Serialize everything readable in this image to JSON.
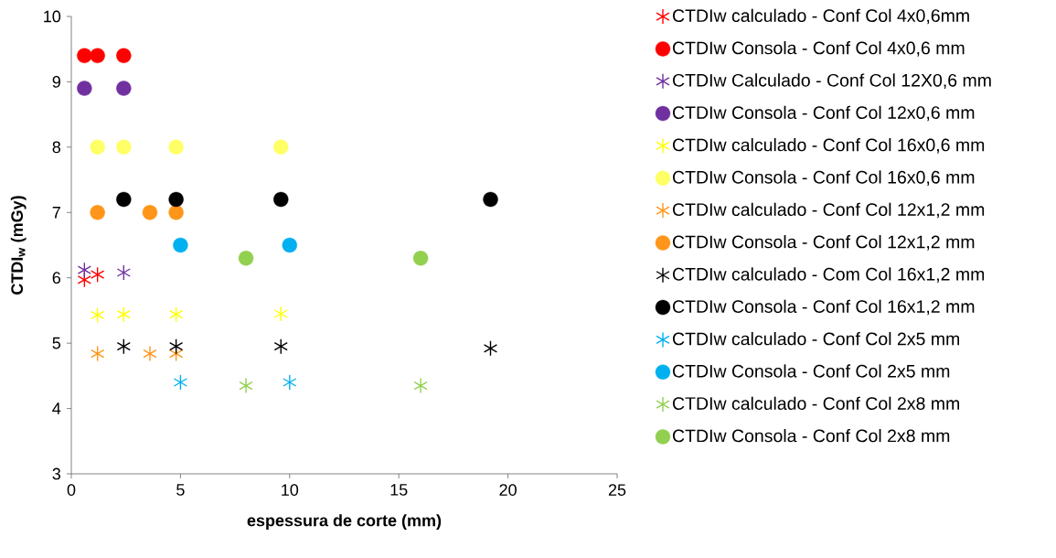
{
  "chart_data": {
    "type": "scatter",
    "xlabel": "espessura de corte (mm)",
    "ylabel": "CTDI$_{w}$  (mGy)",
    "xlim": [
      0,
      25
    ],
    "xticks": [
      0,
      5,
      10,
      15,
      20,
      25
    ],
    "ylim": [
      3,
      10
    ],
    "yticks": [
      3,
      4,
      5,
      6,
      7,
      8,
      9,
      10
    ],
    "grid": false,
    "legend": "right",
    "series": [
      {
        "name": "CTDIw calculado - Conf Col 4x0,6mm",
        "color": "#ff0000",
        "marker": "cross",
        "x": [
          0.6,
          1.2
        ],
        "values": [
          5.97,
          6.05
        ]
      },
      {
        "name": "CTDIw Consola - Conf Col 4x0,6 mm",
        "color": "#ff0000",
        "marker": "circle",
        "x": [
          0.6,
          1.2,
          2.4
        ],
        "values": [
          9.4,
          9.4,
          9.4
        ]
      },
      {
        "name": "CTDIw Calculado - Conf Col 12X0,6 mm",
        "color": "#7030a0",
        "marker": "cross",
        "x": [
          0.6,
          2.4
        ],
        "values": [
          6.12,
          6.08
        ]
      },
      {
        "name": "CTDIw Consola - Conf Col 12x0,6 mm",
        "color": "#7030a0",
        "marker": "circle",
        "x": [
          0.6,
          2.4
        ],
        "values": [
          8.9,
          8.9
        ]
      },
      {
        "name": "CTDIw calculado - Conf Col 16x0,6 mm",
        "color": "#ffff00",
        "marker": "cross",
        "x": [
          1.2,
          2.4,
          4.8,
          9.6
        ],
        "values": [
          5.43,
          5.44,
          5.44,
          5.45
        ]
      },
      {
        "name": "CTDIw Consola - Conf Col 16x0,6 mm",
        "color": "#ffff66",
        "marker": "circle",
        "x": [
          1.2,
          2.4,
          4.8,
          9.6
        ],
        "values": [
          8,
          8,
          8,
          8
        ]
      },
      {
        "name": "CTDIw calculado - Conf Col 12x1,2 mm",
        "color": "#ff9619",
        "marker": "cross",
        "x": [
          1.2,
          3.6,
          4.8
        ],
        "values": [
          4.84,
          4.84,
          4.84
        ]
      },
      {
        "name": "CTDIw Consola - Conf Col 12x1,2 mm",
        "color": "#ff9619",
        "marker": "circle",
        "x": [
          1.2,
          3.6,
          4.8
        ],
        "values": [
          7,
          7,
          7
        ]
      },
      {
        "name": "CTDIw calculado - Com Col 16x1,2 mm",
        "color": "#000000",
        "marker": "cross",
        "x": [
          2.4,
          4.8,
          9.6,
          19.2
        ],
        "values": [
          4.95,
          4.95,
          4.95,
          4.92
        ]
      },
      {
        "name": "CTDIw Consola - Conf Col 16x1,2 mm",
        "color": "#000000",
        "marker": "circle",
        "x": [
          2.4,
          4.8,
          9.6,
          19.2
        ],
        "values": [
          7.2,
          7.2,
          7.2,
          7.2
        ]
      },
      {
        "name": "CTDIw calculado - Conf Col 2x5 mm",
        "color": "#00b0f0",
        "marker": "cross",
        "x": [
          5,
          10
        ],
        "values": [
          4.4,
          4.4
        ]
      },
      {
        "name": "CTDIw Consola - Conf Col 2x5 mm",
        "color": "#00b0f0",
        "marker": "circle",
        "x": [
          5,
          10
        ],
        "values": [
          6.5,
          6.5
        ]
      },
      {
        "name": "CTDIw calculado - Conf Col 2x8 mm",
        "color": "#92d050",
        "marker": "cross",
        "x": [
          8,
          16
        ],
        "values": [
          4.35,
          4.35
        ]
      },
      {
        "name": "CTDIw Consola - Conf Col 2x8 mm",
        "color": "#92d050",
        "marker": "circle",
        "x": [
          8,
          16
        ],
        "values": [
          6.3,
          6.3
        ]
      }
    ]
  }
}
